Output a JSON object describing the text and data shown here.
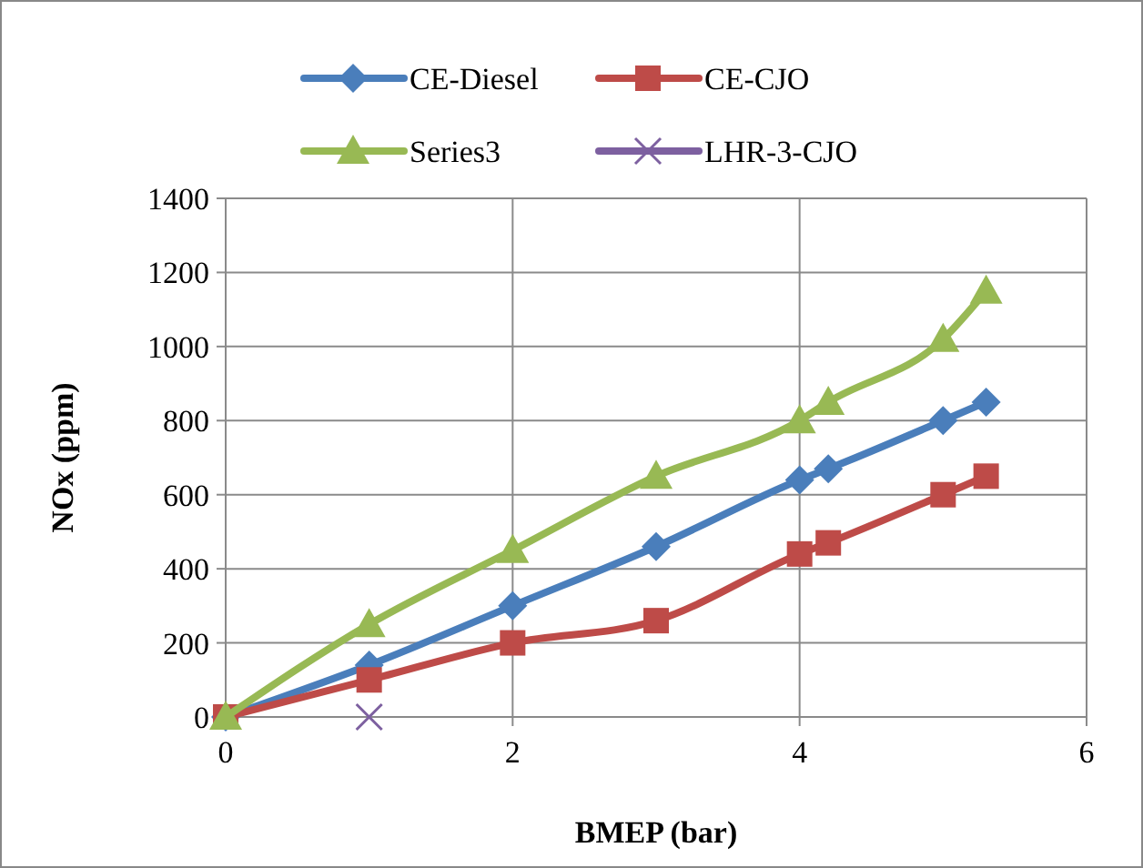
{
  "chart_data": {
    "type": "line",
    "xlabel": "BMEP (bar)",
    "ylabel": "NOx (ppm)",
    "xlim": [
      0,
      6
    ],
    "xticks": [
      0,
      2,
      4,
      6
    ],
    "ylim": [
      0,
      1400
    ],
    "yticks": [
      0,
      200,
      400,
      600,
      800,
      1000,
      1200,
      1400
    ],
    "grid": true,
    "legend": "top",
    "line_style": "solid",
    "x": [
      0,
      1,
      2,
      3,
      4,
      4.2,
      5,
      5.3
    ],
    "series": [
      {
        "name": "CE-Diesel",
        "color": "#4a7ebb",
        "marker": "diamond",
        "values": [
          0,
          140,
          300,
          460,
          640,
          670,
          800,
          850
        ]
      },
      {
        "name": "CE-CJO",
        "color": "#be4b48",
        "marker": "square",
        "values": [
          0,
          100,
          200,
          260,
          440,
          470,
          600,
          650
        ]
      },
      {
        "name": "Series3",
        "color": "#98b954",
        "marker": "triangle",
        "values": [
          0,
          250,
          450,
          650,
          800,
          850,
          1020,
          1150
        ]
      },
      {
        "name": "LHR-3-CJO",
        "color": "#7d60a0",
        "marker": "cross",
        "x": [
          1
        ],
        "values": [
          0
        ]
      }
    ]
  }
}
